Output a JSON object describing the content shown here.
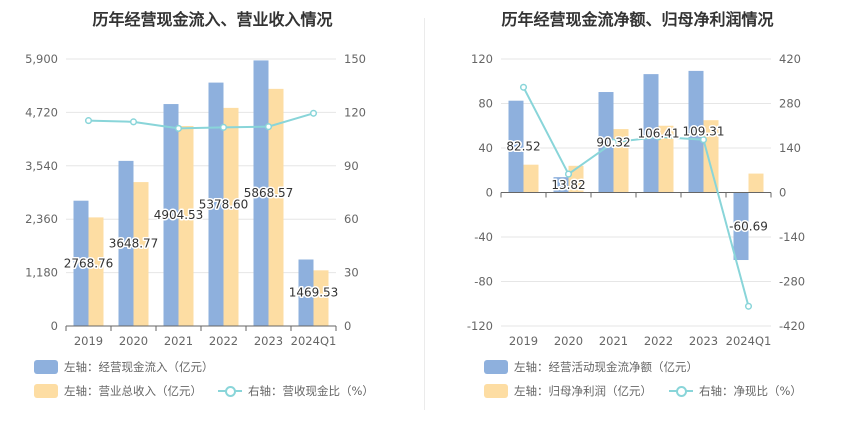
{
  "colors": {
    "blue": "#8eb0dd",
    "orange": "#fddda3",
    "teal": "#89d5d9",
    "grid": "#e6e6e6",
    "axis_text": "#666666"
  },
  "left": {
    "title": "历年经营现金流入、营业收入情况",
    "legend": {
      "bar1": "左轴：经营现金流入（亿元）",
      "bar2": "左轴：营业总收入（亿元）",
      "line": "右轴：营收现金比（%）"
    }
  },
  "right": {
    "title": "历年经营现金流净额、归母净利润情况",
    "legend": {
      "bar1": "左轴：经营活动现金流净额（亿元）",
      "bar2": "左轴：归母净利润（亿元）",
      "line": "右轴：净现比（%）"
    }
  },
  "chart_data": [
    {
      "type": "bar",
      "title": "历年经营现金流入、营业收入情况",
      "categories": [
        "2019",
        "2020",
        "2021",
        "2022",
        "2023",
        "2024Q1"
      ],
      "left_axis": {
        "min": 0,
        "max": 5900,
        "ticks": [
          0,
          1180,
          2360,
          3540,
          4720,
          5900
        ],
        "tick_labels": [
          "0",
          "1,180",
          "2,360",
          "3,540",
          "4,720",
          "5,900"
        ]
      },
      "right_axis": {
        "min": 0,
        "max": 150,
        "ticks": [
          0,
          30,
          60,
          90,
          120,
          150
        ],
        "tick_labels": [
          "0",
          "30",
          "60",
          "90",
          "120",
          "150"
        ]
      },
      "series": [
        {
          "name": "左轴：经营现金流入（亿元）",
          "kind": "bar",
          "axis": "left",
          "color": "#8eb0dd",
          "values": [
            2768.76,
            3648.77,
            4904.53,
            5378.6,
            5868.57,
            1469.53
          ],
          "labels": [
            "2768.76",
            "3648.77",
            "4904.53",
            "5378.60",
            "5868.57",
            "1469.53"
          ]
        },
        {
          "name": "左轴：营业总收入（亿元）",
          "kind": "bar",
          "axis": "left",
          "color": "#fddda3",
          "values": [
            2400,
            3180,
            4420,
            4820,
            5240,
            1230
          ]
        },
        {
          "name": "右轴：营收现金比（%）",
          "kind": "line",
          "axis": "right",
          "color": "#89d5d9",
          "values": [
            115.4,
            114.7,
            111,
            111.6,
            112,
            119.5
          ]
        }
      ]
    },
    {
      "type": "bar",
      "title": "历年经营现金流净额、归母净利润情况",
      "categories": [
        "2019",
        "2020",
        "2021",
        "2022",
        "2023",
        "2024Q1"
      ],
      "left_axis": {
        "min": -120,
        "max": 120,
        "ticks": [
          -120,
          -80,
          -40,
          0,
          40,
          80,
          120
        ],
        "tick_labels": [
          "-120",
          "-80",
          "-40",
          "0",
          "40",
          "80",
          "120"
        ]
      },
      "right_axis": {
        "min": -420,
        "max": 420,
        "ticks": [
          -420,
          -280,
          -140,
          0,
          140,
          280,
          420
        ],
        "tick_labels": [
          "-420",
          "-280",
          "-140",
          "0",
          "140",
          "280",
          "420"
        ]
      },
      "series": [
        {
          "name": "左轴：经营活动现金流净额（亿元）",
          "kind": "bar",
          "axis": "left",
          "color": "#8eb0dd",
          "values": [
            82.52,
            13.82,
            90.32,
            106.41,
            109.31,
            -60.69
          ],
          "labels": [
            "82.52",
            "13.82",
            "90.32",
            "106.41",
            "109.31",
            "-60.69"
          ]
        },
        {
          "name": "左轴：归母净利润（亿元）",
          "kind": "bar",
          "axis": "left",
          "color": "#fddda3",
          "values": [
            25,
            24,
            57,
            60,
            65,
            17
          ]
        },
        {
          "name": "右轴：净现比（%）",
          "kind": "line",
          "axis": "right",
          "color": "#89d5d9",
          "values": [
            331,
            58,
            158,
            175,
            166,
            -358
          ]
        }
      ]
    }
  ]
}
